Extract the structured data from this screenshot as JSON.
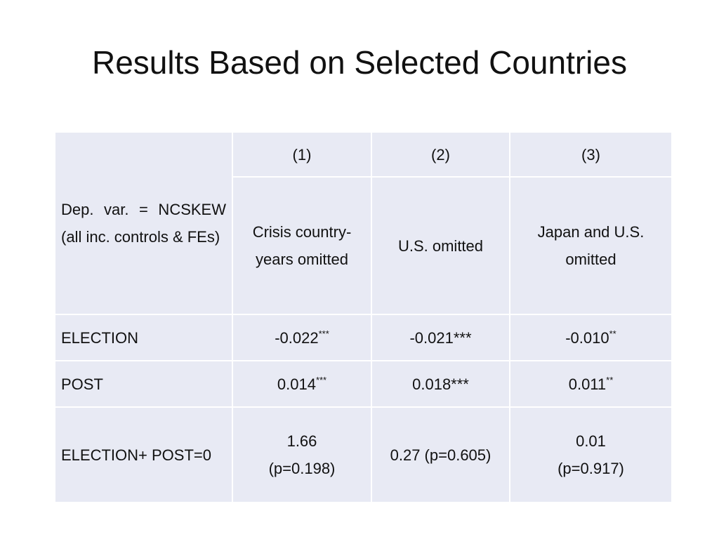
{
  "title": "Results Based on Selected Countries",
  "table": {
    "dep_var_label": "Dep. var. = NCSKEW (all inc. controls & FEs)",
    "column_numbers": [
      "(1)",
      "(2)",
      "(3)"
    ],
    "column_descriptions": [
      {
        "line1": "Crisis country-",
        "line2": "years omitted"
      },
      {
        "line1": "U.S. omitted",
        "line2": ""
      },
      {
        "line1": "Japan and U.S.",
        "line2": "omitted"
      }
    ],
    "rows": [
      {
        "label": "ELECTION",
        "cells": [
          {
            "value": "-0.022",
            "sup": "***"
          },
          {
            "value": "-0.021***",
            "sup": ""
          },
          {
            "value": "-0.010",
            "sup": "**"
          }
        ]
      },
      {
        "label": "POST",
        "cells": [
          {
            "value": "0.014",
            "sup": "***"
          },
          {
            "value": "0.018***",
            "sup": ""
          },
          {
            "value": "0.011",
            "sup": "**"
          }
        ]
      },
      {
        "label": "ELECTION+ POST=0",
        "cells": [
          {
            "line1": "1.66",
            "line2": "(p=0.198)"
          },
          {
            "line1": "0.27 (p=0.605)",
            "line2": ""
          },
          {
            "line1": "0.01",
            "line2": "(p=0.917)"
          }
        ]
      }
    ]
  }
}
